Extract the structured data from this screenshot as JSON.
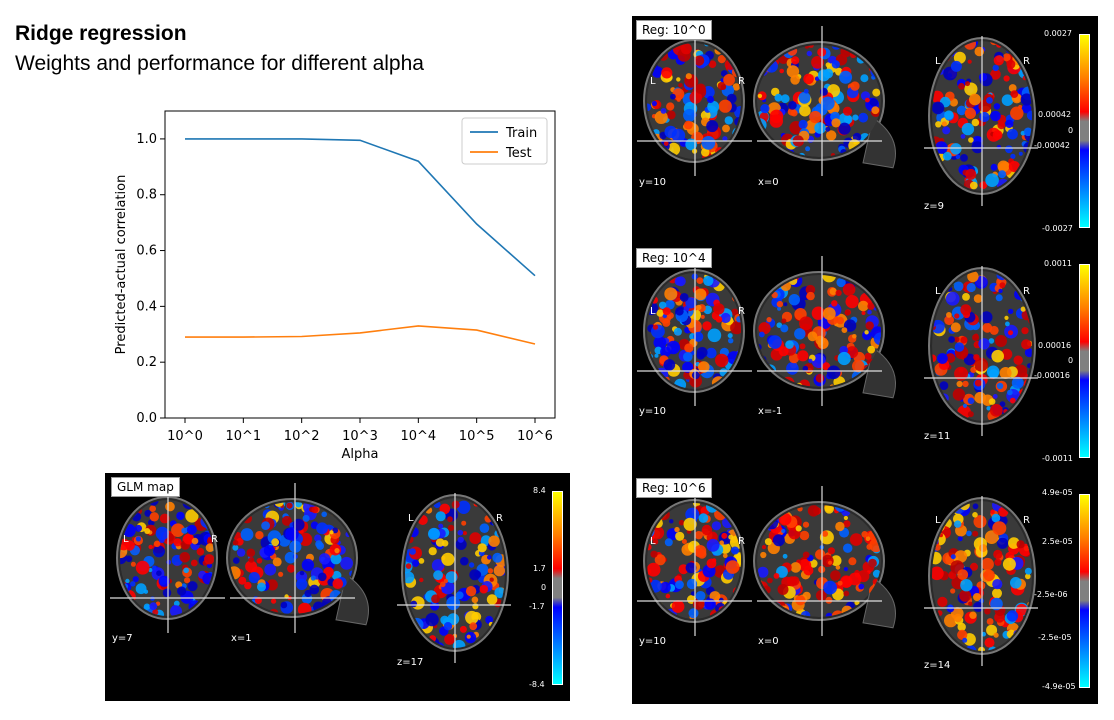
{
  "header": {
    "title": "Ridge regression",
    "subtitle": "Weights and performance for different alpha"
  },
  "chart_data": {
    "type": "line",
    "x": [
      "10^0",
      "10^1",
      "10^2",
      "10^3",
      "10^4",
      "10^5",
      "10^6"
    ],
    "series": [
      {
        "name": "Train",
        "color": "#1f77b4",
        "values": [
          1.0,
          1.0,
          1.0,
          0.995,
          0.92,
          0.695,
          0.51
        ]
      },
      {
        "name": "Test",
        "color": "#ff7f0e",
        "values": [
          0.29,
          0.29,
          0.292,
          0.305,
          0.33,
          0.315,
          0.265
        ]
      }
    ],
    "xlabel": "Alpha",
    "ylabel": "Predicted-actual correlation",
    "ylim": [
      0,
      1.1
    ],
    "yticks": [
      "0.0",
      "0.2",
      "0.4",
      "0.6",
      "0.8",
      "1.0"
    ],
    "ytick_values": [
      0,
      0.2,
      0.4,
      0.6,
      0.8,
      1.0
    ],
    "legend": "top-right",
    "grid": false
  },
  "brain_maps": [
    {
      "id": "glm",
      "label": "GLM map",
      "coords": [
        "y=7",
        "x=1",
        "z=17"
      ],
      "orientation": [
        "L",
        "R",
        "L",
        "R"
      ],
      "colorbar": [
        "8.4",
        "1.7",
        "0",
        "-1.7",
        "-8.4"
      ]
    },
    {
      "id": "reg0",
      "label": "Reg: 10^0",
      "coords": [
        "y=10",
        "x=0",
        "z=9"
      ],
      "orientation": [
        "L",
        "R",
        "L",
        "R"
      ],
      "colorbar": [
        "0.0027",
        "0.00042",
        "0",
        "-0.00042",
        "-0.0027"
      ]
    },
    {
      "id": "reg4",
      "label": "Reg: 10^4",
      "coords": [
        "y=10",
        "x=-1",
        "z=11"
      ],
      "orientation": [
        "L",
        "R",
        "L",
        "R"
      ],
      "colorbar": [
        "0.0011",
        "0.00016",
        "0",
        "-0.00016",
        "-0.0011"
      ]
    },
    {
      "id": "reg6",
      "label": "Reg: 10^6",
      "coords": [
        "y=10",
        "x=0",
        "z=14"
      ],
      "orientation": [
        "L",
        "R",
        "L",
        "R"
      ],
      "colorbar": [
        "4.9e-05",
        "2.5e-05",
        "-2.5e-06",
        "-2.5e-05",
        "-4.9e-05"
      ]
    }
  ]
}
